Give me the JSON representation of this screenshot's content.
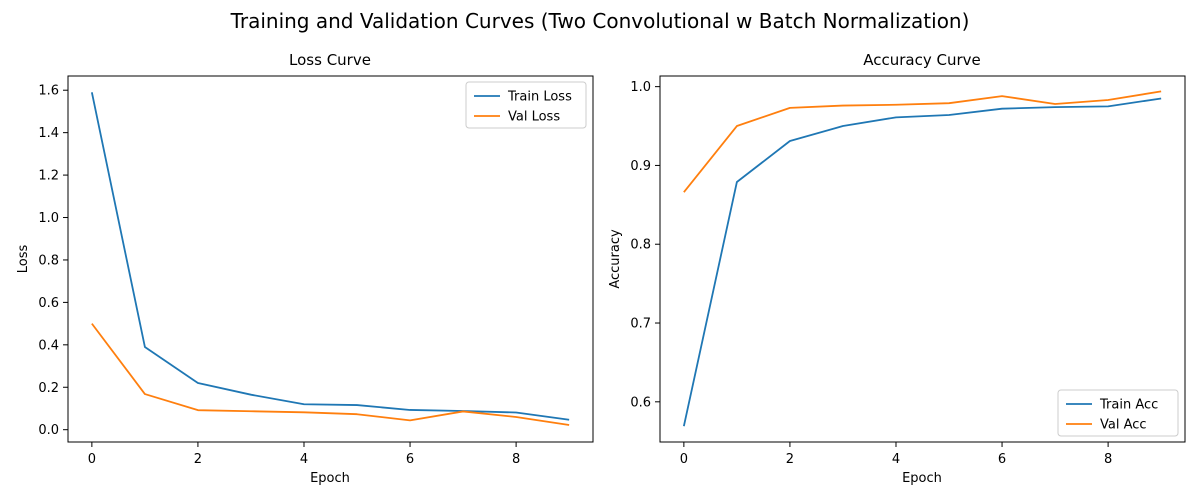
{
  "figure": {
    "suptitle": "Training and Validation Curves (Two Convolutional w Batch Normalization)"
  },
  "colors": {
    "train": "#1f77b4",
    "val": "#ff7f0e"
  },
  "chart_data": [
    {
      "type": "line",
      "title": "Loss Curve",
      "xlabel": "Epoch",
      "ylabel": "Loss",
      "xlim": [
        -0.45,
        9.45
      ],
      "ylim": [
        -0.058,
        1.667
      ],
      "xticks": [
        0,
        2,
        4,
        6,
        8
      ],
      "yticks": [
        0.0,
        0.2,
        0.4,
        0.6,
        0.8,
        1.0,
        1.2,
        1.4,
        1.6
      ],
      "ytick_decimals": 1,
      "legend_loc": "upper-right",
      "grid": false,
      "x": [
        0,
        1,
        2,
        3,
        4,
        5,
        6,
        7,
        8,
        9
      ],
      "series": [
        {
          "name": "Train Loss",
          "color_key": "train",
          "values": [
            1.59,
            0.39,
            0.22,
            0.165,
            0.12,
            0.116,
            0.093,
            0.088,
            0.081,
            0.047
          ]
        },
        {
          "name": "Val Loss",
          "color_key": "val",
          "values": [
            0.5,
            0.168,
            0.092,
            0.087,
            0.082,
            0.073,
            0.044,
            0.086,
            0.06,
            0.022
          ]
        }
      ]
    },
    {
      "type": "line",
      "title": "Accuracy Curve",
      "xlabel": "Epoch",
      "ylabel": "Accuracy",
      "xlim": [
        -0.45,
        9.45
      ],
      "ylim": [
        0.549,
        1.0135
      ],
      "xticks": [
        0,
        2,
        4,
        6,
        8
      ],
      "yticks": [
        0.6,
        0.7,
        0.8,
        0.9,
        1.0
      ],
      "ytick_decimals": 1,
      "legend_loc": "lower-right",
      "grid": false,
      "x": [
        0,
        1,
        2,
        3,
        4,
        5,
        6,
        7,
        8,
        9
      ],
      "series": [
        {
          "name": "Train Acc",
          "color_key": "train",
          "values": [
            0.569,
            0.879,
            0.931,
            0.95,
            0.961,
            0.964,
            0.972,
            0.974,
            0.975,
            0.985
          ]
        },
        {
          "name": "Val Acc",
          "color_key": "val",
          "values": [
            0.866,
            0.95,
            0.973,
            0.976,
            0.977,
            0.979,
            0.988,
            0.978,
            0.983,
            0.994
          ]
        }
      ]
    }
  ]
}
